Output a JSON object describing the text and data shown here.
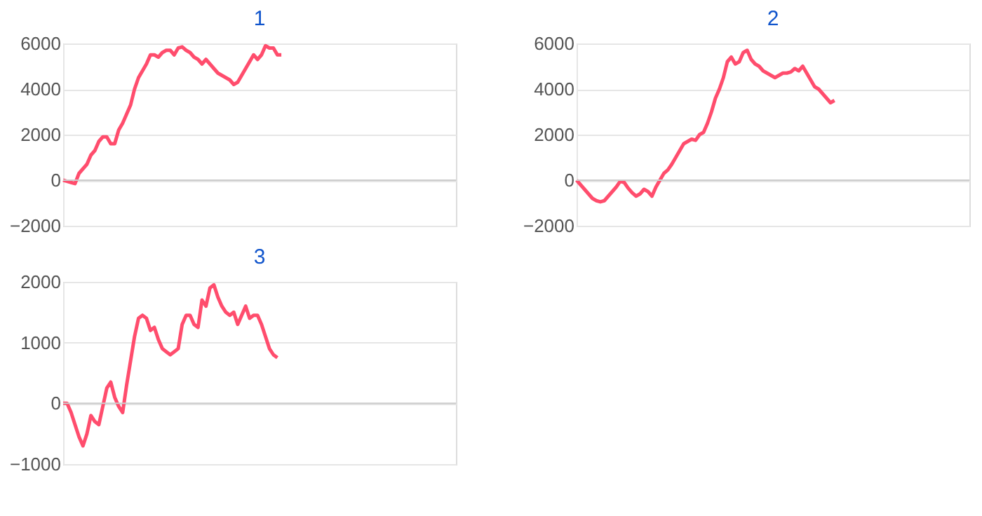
{
  "chart_data": [
    {
      "type": "line",
      "title": "1",
      "categories": [
        null,
        null,
        null,
        null,
        null,
        null,
        null,
        null,
        null,
        null,
        null,
        null,
        null,
        null,
        null,
        null,
        null,
        null,
        null,
        null,
        null,
        null,
        null,
        null,
        null,
        null,
        null,
        null,
        null,
        null,
        null,
        null,
        null,
        null,
        null,
        null,
        null,
        null,
        null,
        null,
        null,
        null,
        null,
        null,
        null,
        null,
        null,
        null,
        null,
        null,
        null,
        null,
        null,
        null,
        null,
        null,
        null,
        null,
        null,
        null,
        null,
        null,
        null,
        null,
        null,
        null,
        null,
        null,
        null,
        null,
        null,
        null,
        null,
        null,
        null,
        null,
        null,
        null,
        null,
        null,
        null,
        null,
        null,
        null,
        null,
        null,
        null,
        null,
        null,
        null,
        null,
        null,
        null,
        null,
        null,
        null,
        null,
        null,
        null,
        null
      ],
      "series": [
        {
          "color": "#ff4d6d",
          "values": [
            0,
            -50,
            -100,
            -150,
            300,
            500,
            700,
            1100,
            1300,
            1700,
            1900,
            1900,
            1600,
            1600,
            2200,
            2500,
            2900,
            3300,
            4000,
            4500,
            4800,
            5100,
            5500,
            5500,
            5400,
            5600,
            5700,
            5700,
            5500,
            5800,
            5850,
            5700,
            5600,
            5400,
            5300,
            5100,
            5300,
            5100,
            4900,
            4700,
            4600,
            4500,
            4400,
            4200,
            4300,
            4600,
            4900,
            5200,
            5500,
            5300,
            5500,
            5900,
            5800,
            5800,
            5500,
            5500,
            null,
            null,
            null,
            null,
            null,
            null,
            null,
            null,
            null,
            null,
            null,
            null,
            null,
            null,
            null,
            null,
            null,
            null,
            null,
            null,
            null,
            null,
            null,
            null,
            null,
            null,
            null,
            null,
            null,
            null,
            null,
            null,
            null,
            null,
            null,
            null,
            null,
            null,
            null,
            null,
            null,
            null,
            null,
            null
          ]
        }
      ],
      "ylim": [
        -2000,
        6000
      ],
      "yticks": [
        -2000,
        0,
        2000,
        4000,
        6000
      ],
      "grid": "y",
      "tick_labels": "y"
    },
    {
      "type": "line",
      "title": "2",
      "categories": [
        null,
        null,
        null,
        null,
        null,
        null,
        null,
        null,
        null,
        null,
        null,
        null,
        null,
        null,
        null,
        null,
        null,
        null,
        null,
        null,
        null,
        null,
        null,
        null,
        null,
        null,
        null,
        null,
        null,
        null,
        null,
        null,
        null,
        null,
        null,
        null,
        null,
        null,
        null,
        null,
        null,
        null,
        null,
        null,
        null,
        null,
        null,
        null,
        null,
        null,
        null,
        null,
        null,
        null,
        null,
        null,
        null,
        null,
        null,
        null,
        null,
        null,
        null,
        null,
        null,
        null,
        null,
        null,
        null,
        null,
        null,
        null,
        null,
        null,
        null,
        null,
        null,
        null,
        null,
        null,
        null,
        null,
        null,
        null,
        null,
        null,
        null,
        null,
        null,
        null,
        null,
        null,
        null,
        null,
        null,
        null,
        null,
        null,
        null,
        null
      ],
      "series": [
        {
          "color": "#ff4d6d",
          "values": [
            0,
            -200,
            -400,
            -600,
            -800,
            -900,
            -950,
            -900,
            -700,
            -500,
            -300,
            -50,
            -100,
            -350,
            -550,
            -700,
            -600,
            -400,
            -500,
            -700,
            -300,
            0,
            300,
            450,
            700,
            1000,
            1300,
            1600,
            1700,
            1800,
            1750,
            2000,
            2100,
            2500,
            3000,
            3600,
            4000,
            4500,
            5200,
            5400,
            5100,
            5200,
            5600,
            5700,
            5300,
            5100,
            5000,
            4800,
            4700,
            4600,
            4500,
            4600,
            4700,
            4700,
            4750,
            4900,
            4800,
            5000,
            4700,
            4400,
            4100,
            4000,
            3800,
            3600,
            3400,
            3500,
            null,
            null,
            null,
            null,
            null,
            null,
            null,
            null,
            null,
            null,
            null,
            null,
            null,
            null,
            null,
            null,
            null,
            null,
            null,
            null,
            null,
            null,
            null,
            null,
            null,
            null,
            null,
            null,
            null,
            null,
            null,
            null,
            null,
            null
          ]
        }
      ],
      "ylim": [
        -2000,
        6000
      ],
      "yticks": [
        -2000,
        0,
        2000,
        4000,
        6000
      ],
      "grid": "y",
      "tick_labels": "y"
    },
    {
      "type": "line",
      "title": "3",
      "categories": [
        null,
        null,
        null,
        null,
        null,
        null,
        null,
        null,
        null,
        null,
        null,
        null,
        null,
        null,
        null,
        null,
        null,
        null,
        null,
        null,
        null,
        null,
        null,
        null,
        null,
        null,
        null,
        null,
        null,
        null,
        null,
        null,
        null,
        null,
        null,
        null,
        null,
        null,
        null,
        null,
        null,
        null,
        null,
        null,
        null,
        null,
        null,
        null,
        null,
        null,
        null,
        null,
        null,
        null,
        null,
        null,
        null,
        null,
        null,
        null,
        null,
        null,
        null,
        null,
        null,
        null,
        null,
        null,
        null,
        null,
        null,
        null,
        null,
        null,
        null,
        null,
        null,
        null,
        null,
        null,
        null,
        null,
        null,
        null,
        null,
        null,
        null,
        null,
        null,
        null,
        null,
        null,
        null,
        null,
        null,
        null,
        null,
        null,
        null,
        null
      ],
      "series": [
        {
          "color": "#ff4d6d",
          "values": [
            0,
            0,
            -150,
            -350,
            -550,
            -700,
            -500,
            -200,
            -300,
            -350,
            -50,
            250,
            350,
            100,
            -50,
            -150,
            300,
            700,
            1100,
            1400,
            1450,
            1400,
            1200,
            1250,
            1050,
            900,
            850,
            800,
            850,
            900,
            1300,
            1450,
            1450,
            1300,
            1250,
            1700,
            1600,
            1900,
            1950,
            1750,
            1600,
            1500,
            1450,
            1500,
            1300,
            1450,
            1600,
            1400,
            1450,
            1450,
            1300,
            1100,
            900,
            800,
            750,
            null,
            null,
            null,
            null,
            null,
            null,
            null,
            null,
            null,
            null,
            null,
            null,
            null,
            null,
            null,
            null,
            null,
            null,
            null,
            null,
            null,
            null,
            null,
            null,
            null,
            null,
            null,
            null,
            null,
            null,
            null,
            null,
            null,
            null,
            null,
            null,
            null,
            null,
            null,
            null,
            null,
            null,
            null,
            null,
            null
          ]
        }
      ],
      "ylim": [
        -1000,
        2000
      ],
      "yticks": [
        -1000,
        0,
        1000,
        2000
      ],
      "grid": "y",
      "tick_labels": "y"
    }
  ]
}
